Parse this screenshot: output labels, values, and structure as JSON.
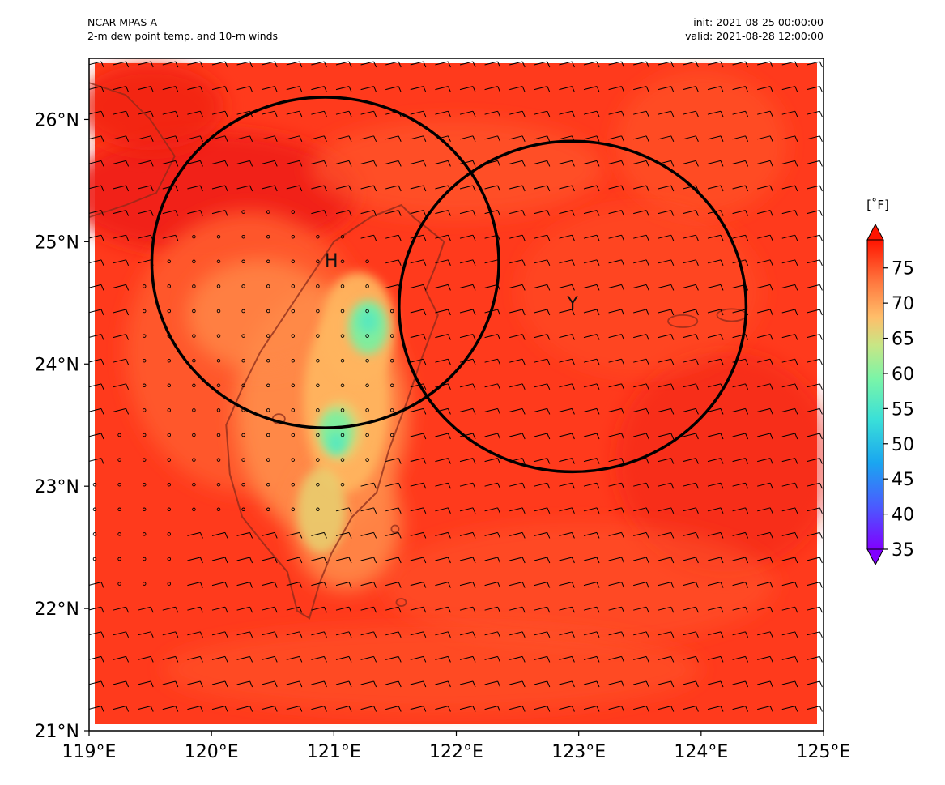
{
  "header": {
    "left_line1": "NCAR MPAS-A",
    "left_line2": "2-m dew point temp. and 10-m winds",
    "right_line1": "init: 2021-08-25 00:00:00",
    "right_line2": "valid: 2021-08-28 12:00:00"
  },
  "map": {
    "lon_range": [
      119,
      125
    ],
    "lat_range": [
      21,
      26.5
    ],
    "lon_ticks": [
      {
        "value": 119,
        "label": "119°E"
      },
      {
        "value": 120,
        "label": "120°E"
      },
      {
        "value": 121,
        "label": "121°E"
      },
      {
        "value": 122,
        "label": "122°E"
      },
      {
        "value": 123,
        "label": "123°E"
      },
      {
        "value": 124,
        "label": "124°E"
      },
      {
        "value": 125,
        "label": "125°E"
      }
    ],
    "lat_ticks": [
      {
        "value": 21,
        "label": "21°N"
      },
      {
        "value": 22,
        "label": "22°N"
      },
      {
        "value": 23,
        "label": "23°N"
      },
      {
        "value": 24,
        "label": "24°N"
      },
      {
        "value": 25,
        "label": "25°N"
      },
      {
        "value": 26,
        "label": "26°N"
      }
    ],
    "markers": [
      {
        "label": "H",
        "lon": 120.98,
        "lat": 24.85
      },
      {
        "label": "Y",
        "lon": 122.95,
        "lat": 24.5
      }
    ],
    "circles": [
      {
        "center_lon": 120.93,
        "center_lat": 24.83,
        "radius_deg": 1.35
      },
      {
        "center_lon": 122.95,
        "center_lat": 24.47,
        "radius_deg": 1.35
      }
    ],
    "field_colors": {
      "background": "#ff3a1c",
      "dark_red": "#f01f14",
      "mid_orange": "#ff5a2c",
      "light_orange": "#ff8a48",
      "tan": "#ffb45e",
      "yellow": "#e8d070",
      "green": "#7af0a0",
      "teal": "#54e8c0"
    }
  },
  "colorbar": {
    "unit": "[˚F]",
    "min": 35,
    "max": 79,
    "ticks": [
      {
        "value": 35,
        "label": "35"
      },
      {
        "value": 40,
        "label": "40"
      },
      {
        "value": 45,
        "label": "45"
      },
      {
        "value": 50,
        "label": "50"
      },
      {
        "value": 55,
        "label": "55"
      },
      {
        "value": 60,
        "label": "60"
      },
      {
        "value": 65,
        "label": "65"
      },
      {
        "value": 70,
        "label": "70"
      },
      {
        "value": 75,
        "label": "75"
      }
    ]
  }
}
